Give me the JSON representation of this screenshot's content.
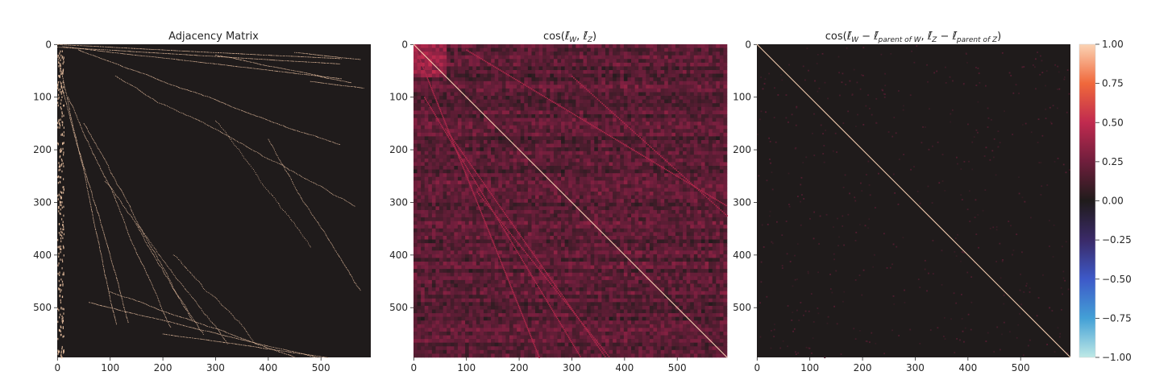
{
  "chart_data": [
    {
      "type": "heatmap",
      "title": "Adjacency Matrix",
      "x_ticks": [
        0,
        100,
        200,
        300,
        400,
        500
      ],
      "y_ticks": [
        0,
        100,
        200,
        300,
        400,
        500
      ],
      "xlim": [
        0,
        595
      ],
      "ylim": [
        0,
        595
      ],
      "y_inverted": true,
      "colormap": "binary-on-dark",
      "background_color": "#1f1b1b",
      "mark_color": "#f4c9a8",
      "description_of_pattern": "sparse lower-triangular-style staircase curves: each node's ancestors marked; dense column near x=0"
    },
    {
      "type": "heatmap",
      "title_parts": {
        "prefix": "cos(",
        "a_sym": "ℓ̄",
        "a_sub": "W",
        "sep": ", ",
        "b_sym": "ℓ̄",
        "b_sub": "Z",
        "suffix": ")"
      },
      "x_ticks": [
        0,
        100,
        200,
        300,
        400,
        500
      ],
      "y_ticks": [
        0,
        100,
        200,
        300,
        400,
        500
      ],
      "xlim": [
        0,
        595
      ],
      "ylim": [
        0,
        595
      ],
      "y_inverted": true,
      "colormap": "icefire",
      "vmin": -1.0,
      "vmax": 1.0,
      "diagonal_value": 1.0,
      "typical_offdiag_range": [
        0.0,
        0.35
      ]
    },
    {
      "type": "heatmap",
      "title_parts": {
        "prefix": "cos(",
        "a_sym": "ℓ̄",
        "a_sub": "W",
        "minus": " − ",
        "c_sym": "ℓ̄",
        "c_sub": "parent of W",
        "sep": ", ",
        "b_sym": "ℓ̄",
        "b_sub": "Z",
        "d_sym": "ℓ̄",
        "d_sub": "parent of Z",
        "suffix": ")"
      },
      "x_ticks": [
        0,
        100,
        200,
        300,
        400,
        500
      ],
      "y_ticks": [
        0,
        100,
        200,
        300,
        400,
        500
      ],
      "xlim": [
        0,
        595
      ],
      "ylim": [
        0,
        595
      ],
      "y_inverted": true,
      "colormap": "icefire",
      "vmin": -1.0,
      "vmax": 1.0,
      "diagonal_value": 1.0,
      "typical_offdiag_range": [
        -0.05,
        0.1
      ]
    }
  ],
  "colorbar": {
    "ticks": [
      "1.00",
      "0.75",
      "0.50",
      "0.25",
      "0.00",
      "−0.25",
      "−0.50",
      "−0.75",
      "−1.00"
    ],
    "tick_values": [
      1.0,
      0.75,
      0.5,
      0.25,
      0.0,
      -0.25,
      -0.5,
      -0.75,
      -1.0
    ],
    "stops": [
      {
        "v": 1.0,
        "color": "#fbd3b4"
      },
      {
        "v": 0.75,
        "color": "#f0683b"
      },
      {
        "v": 0.5,
        "color": "#c02a4f"
      },
      {
        "v": 0.25,
        "color": "#6f1e3c"
      },
      {
        "v": 0.0,
        "color": "#1f1b1b"
      },
      {
        "v": -0.25,
        "color": "#3a2a68"
      },
      {
        "v": -0.5,
        "color": "#3d59c8"
      },
      {
        "v": -0.75,
        "color": "#43a0d6"
      },
      {
        "v": -1.0,
        "color": "#bfe9e6"
      }
    ]
  }
}
